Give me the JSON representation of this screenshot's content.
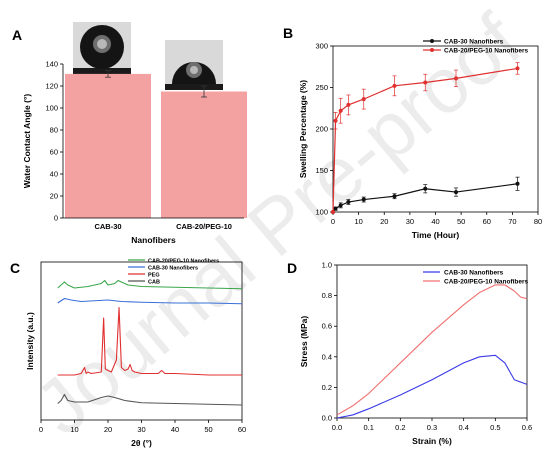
{
  "panels": {
    "A": "A",
    "B": "B",
    "C": "C",
    "D": "D"
  },
  "watermark": "Journal Pre-proof",
  "chart_data": [
    {
      "id": "A",
      "type": "bar",
      "categories": [
        "CAB-30",
        "CAB-20/PEG-10"
      ],
      "values": [
        131,
        115
      ],
      "errors": [
        3,
        5
      ],
      "xlabel": "Nanofibers",
      "ylabel": "Water Contact Angle (°)",
      "ylim": [
        0,
        140
      ],
      "yticks": [
        "0",
        "20",
        "40",
        "60",
        "80",
        "100",
        "120",
        "140"
      ],
      "bar_color": "#f4a1a1",
      "grid": false
    },
    {
      "id": "B",
      "type": "line",
      "xlabel": "Time (Hour)",
      "ylabel": "Swelling Percentage (%)",
      "xlim": [
        0,
        80
      ],
      "ylim": [
        100,
        300
      ],
      "xticks": [
        "0",
        "10",
        "20",
        "30",
        "40",
        "50",
        "60",
        "70",
        "80"
      ],
      "yticks": [
        "100",
        "150",
        "200",
        "250",
        "300"
      ],
      "legend": "top-right",
      "series": [
        {
          "name": "CAB-30 Nanofibers",
          "color": "#111111",
          "x": [
            0,
            1,
            3,
            6,
            12,
            24,
            36,
            48,
            72
          ],
          "y": [
            100,
            104,
            108,
            112,
            115,
            119,
            128,
            124,
            134
          ],
          "err": [
            0,
            2,
            3,
            3,
            3,
            3,
            5,
            5,
            8
          ]
        },
        {
          "name": "CAB-20/PEG-10 Nanofibers",
          "color": "#e03030",
          "x": [
            0,
            1,
            3,
            6,
            12,
            24,
            36,
            48,
            72
          ],
          "y": [
            100,
            210,
            222,
            229,
            236,
            252,
            256,
            261,
            273
          ],
          "err": [
            0,
            10,
            15,
            12,
            12,
            12,
            10,
            10,
            7
          ]
        }
      ]
    },
    {
      "id": "C",
      "type": "line",
      "xlabel": "2θ (°)",
      "ylabel": "Intensity (a.u.)",
      "xlim": [
        0,
        60
      ],
      "xticks": [
        "0",
        "10",
        "20",
        "30",
        "40",
        "50",
        "60"
      ],
      "legend": "top-right",
      "series": [
        {
          "name": "CAB-20/PEG-10 Nanofibers",
          "color": "#3aa64a",
          "x": [
            5,
            7,
            8,
            10,
            14,
            18,
            19,
            20,
            22,
            23,
            26,
            30,
            40,
            50,
            60
          ],
          "y": [
            0.88,
            0.92,
            0.9,
            0.88,
            0.89,
            0.91,
            0.93,
            0.9,
            0.91,
            0.93,
            0.9,
            0.89,
            0.885,
            0.88,
            0.875
          ]
        },
        {
          "name": "CAB-30 Nanofibers",
          "color": "#3a6fd8",
          "x": [
            5,
            7,
            9,
            12,
            16,
            20,
            24,
            30,
            40,
            50,
            60
          ],
          "y": [
            0.78,
            0.81,
            0.8,
            0.79,
            0.795,
            0.8,
            0.79,
            0.785,
            0.78,
            0.78,
            0.775
          ]
        },
        {
          "name": "PEG",
          "color": "#e03030",
          "x": [
            5,
            10,
            12,
            13,
            13.5,
            14,
            15,
            18,
            18.7,
            19.2,
            20,
            21,
            22.5,
            23.3,
            24,
            25,
            26,
            26.6,
            27.2,
            28,
            30,
            35,
            36,
            37,
            40,
            45,
            50,
            55,
            60
          ],
          "y": [
            0.3,
            0.3,
            0.31,
            0.35,
            0.31,
            0.32,
            0.31,
            0.32,
            0.68,
            0.34,
            0.33,
            0.32,
            0.4,
            0.75,
            0.35,
            0.33,
            0.34,
            0.37,
            0.33,
            0.32,
            0.31,
            0.31,
            0.33,
            0.31,
            0.31,
            0.305,
            0.3,
            0.3,
            0.3
          ]
        },
        {
          "name": "CAB",
          "color": "#555555",
          "x": [
            5,
            6,
            7,
            8,
            10,
            14,
            18,
            20,
            22,
            25,
            30,
            40,
            50,
            60
          ],
          "y": [
            0.11,
            0.13,
            0.17,
            0.13,
            0.12,
            0.12,
            0.15,
            0.16,
            0.15,
            0.13,
            0.115,
            0.11,
            0.105,
            0.1
          ]
        }
      ]
    },
    {
      "id": "D",
      "type": "line",
      "xlabel": "Strain (%)",
      "ylabel": "Stress (MPa)",
      "xlim": [
        0,
        0.6
      ],
      "ylim": [
        0,
        1.0
      ],
      "xticks": [
        "0.0",
        "0.1",
        "0.2",
        "0.3",
        "0.4",
        "0.5",
        "0.6"
      ],
      "yticks": [
        "0.0",
        "0.2",
        "0.4",
        "0.6",
        "0.8",
        "1.0"
      ],
      "legend": "top-left",
      "series": [
        {
          "name": "CAB-30 Nanofibers",
          "color": "#3a3ae8",
          "x": [
            0,
            0.05,
            0.1,
            0.2,
            0.3,
            0.4,
            0.45,
            0.5,
            0.53,
            0.56,
            0.6
          ],
          "y": [
            0,
            0.02,
            0.06,
            0.15,
            0.25,
            0.36,
            0.4,
            0.41,
            0.36,
            0.25,
            0.22
          ]
        },
        {
          "name": "CAB-20/PEG-10 Nanofibers",
          "color": "#f07070",
          "x": [
            0,
            0.05,
            0.1,
            0.2,
            0.3,
            0.4,
            0.45,
            0.5,
            0.53,
            0.56,
            0.58,
            0.6
          ],
          "y": [
            0.02,
            0.08,
            0.16,
            0.36,
            0.56,
            0.74,
            0.82,
            0.87,
            0.87,
            0.83,
            0.79,
            0.78
          ]
        }
      ]
    }
  ]
}
